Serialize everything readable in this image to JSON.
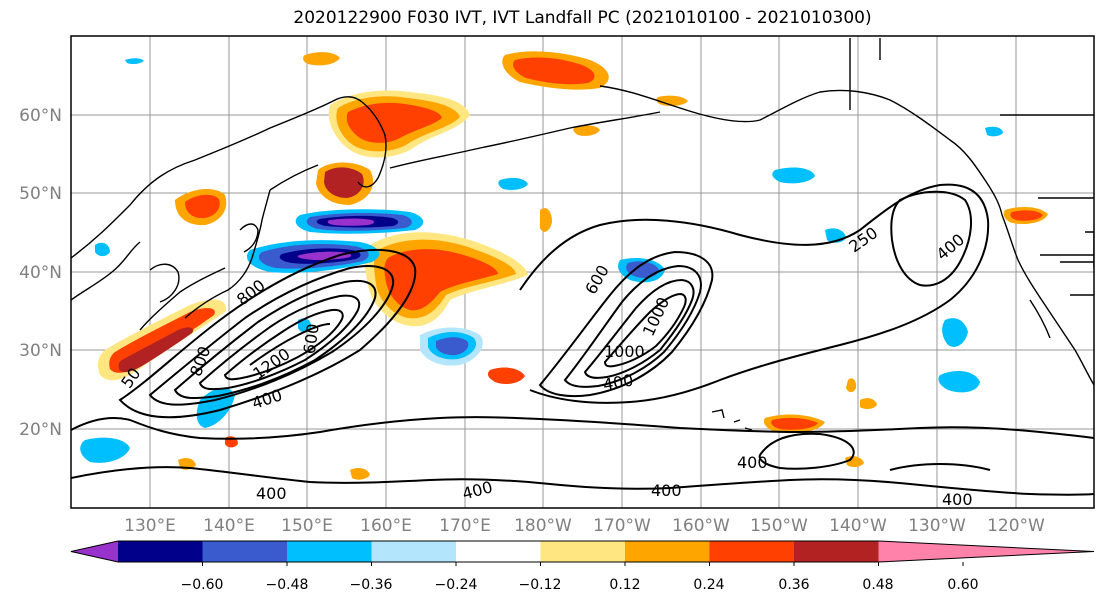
{
  "title": "2020122900 F030 IVT, IVT Landfall PC (2021010100 - 2021010300)",
  "map": {
    "lat_labels": [
      "60°N",
      "50°N",
      "40°N",
      "30°N",
      "20°N"
    ],
    "lon_labels": [
      "130°E",
      "140°E",
      "150°E",
      "160°E",
      "170°E",
      "180°W",
      "170°W",
      "160°W",
      "150°W",
      "140°W",
      "130°W",
      "120°W"
    ],
    "contour_labels": [
      "250",
      "400",
      "600",
      "800",
      "1000",
      "1200",
      "400",
      "400",
      "400",
      "400",
      "400",
      "400",
      "600",
      "400",
      "800",
      "1000",
      "50"
    ],
    "grid": true
  },
  "colorbar": {
    "ticks": [
      "−0.60",
      "−0.48",
      "−0.36",
      "−0.24",
      "−0.12",
      "0.12",
      "0.24",
      "0.36",
      "0.48",
      "0.60"
    ],
    "colors": [
      "#9932CC",
      "#00008B",
      "#3A5BCD",
      "#00BFFF",
      "#B3E5FC",
      "#FFFFFF",
      "#FFE680",
      "#FFA500",
      "#FF4000",
      "#B22222",
      "#FF82AB"
    ]
  }
}
